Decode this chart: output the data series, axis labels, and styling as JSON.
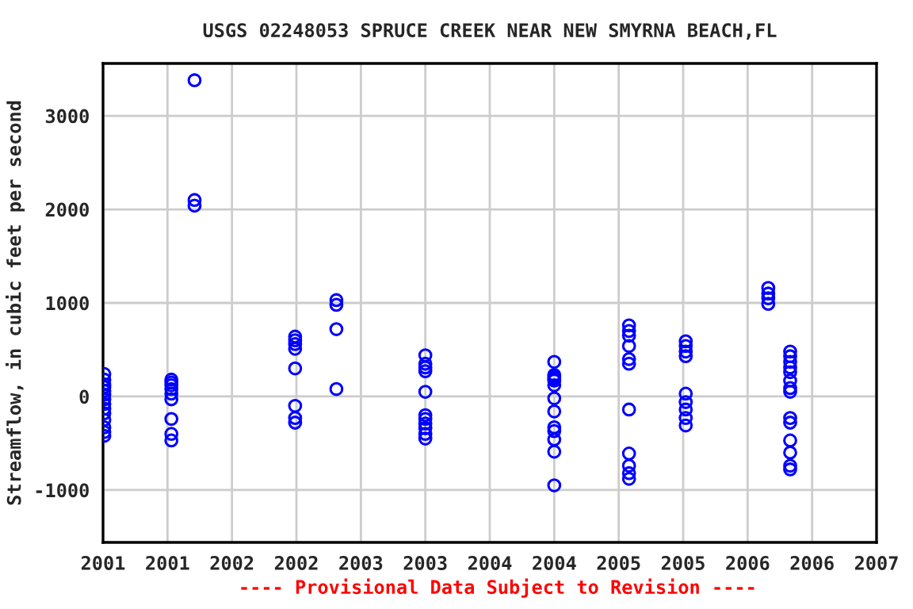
{
  "chart_data": {
    "type": "scatter",
    "title": "USGS 02248053 SPRUCE CREEK NEAR NEW SMYRNA BEACH,FL",
    "ylabel": "Streamflow, in cubic feet per second",
    "annotations": [
      "---- Provisional Data Subject to Revision ----"
    ],
    "marker": "circle",
    "grid": true,
    "xlim": [
      2001,
      2007
    ],
    "ylim": [
      -1560,
      3560
    ],
    "xticks": [
      {
        "value": 2001,
        "label": "2001"
      },
      {
        "value": 2001.5,
        "label": "2001"
      },
      {
        "value": 2002,
        "label": "2002"
      },
      {
        "value": 2002.5,
        "label": "2002"
      },
      {
        "value": 2003,
        "label": "2003"
      },
      {
        "value": 2003.5,
        "label": "2003"
      },
      {
        "value": 2004,
        "label": "2004"
      },
      {
        "value": 2004.5,
        "label": "2004"
      },
      {
        "value": 2005,
        "label": "2005"
      },
      {
        "value": 2005.5,
        "label": "2005"
      },
      {
        "value": 2006,
        "label": "2006"
      },
      {
        "value": 2006.5,
        "label": "2006"
      },
      {
        "value": 2007,
        "label": "2007"
      }
    ],
    "yticks": [
      -1000,
      0,
      1000,
      2000,
      3000
    ],
    "series": [
      {
        "color": "#0000ff",
        "x": [
          2001.01,
          2001.01,
          2001.01,
          2001.01,
          2001.01,
          2001.01,
          2001.01,
          2001.01,
          2001.01,
          2001.01,
          2001.01,
          2001.01,
          2001.01,
          2001.01,
          2001.53,
          2001.53,
          2001.53,
          2001.53,
          2001.53,
          2001.53,
          2001.53,
          2001.53,
          2001.53,
          2001.71,
          2001.71,
          2001.71,
          2002.49,
          2002.49,
          2002.49,
          2002.49,
          2002.49,
          2002.49,
          2002.49,
          2002.49,
          2002.81,
          2002.81,
          2002.81,
          2002.81,
          2003.5,
          2003.5,
          2003.5,
          2003.5,
          2003.5,
          2003.5,
          2003.5,
          2003.5,
          2003.5,
          2003.5,
          2003.5,
          2004.5,
          2004.5,
          2004.5,
          2004.5,
          2004.5,
          2004.5,
          2004.5,
          2004.5,
          2004.5,
          2004.5,
          2004.5,
          2004.5,
          2004.5,
          2005.08,
          2005.08,
          2005.08,
          2005.08,
          2005.08,
          2005.08,
          2005.08,
          2005.08,
          2005.08,
          2005.08,
          2005.08,
          2005.52,
          2005.52,
          2005.52,
          2005.52,
          2005.52,
          2005.52,
          2005.52,
          2005.52,
          2005.52,
          2006.16,
          2006.16,
          2006.16,
          2006.16,
          2006.33,
          2006.33,
          2006.33,
          2006.33,
          2006.33,
          2006.33,
          2006.33,
          2006.33,
          2006.33,
          2006.33,
          2006.33,
          2006.33,
          2006.33,
          2006.33
        ],
        "values": [
          240,
          180,
          130,
          100,
          60,
          20,
          -30,
          -80,
          -130,
          -180,
          -250,
          -330,
          -380,
          -420,
          180,
          150,
          120,
          80,
          30,
          -30,
          -240,
          -400,
          -470,
          3380,
          2100,
          2040,
          640,
          600,
          560,
          510,
          300,
          -100,
          -230,
          -280,
          1030,
          980,
          720,
          80,
          440,
          350,
          310,
          270,
          50,
          -200,
          -240,
          -290,
          -340,
          -400,
          -450,
          370,
          230,
          210,
          190,
          170,
          120,
          -20,
          -160,
          -330,
          -370,
          -460,
          -590,
          -950,
          760,
          700,
          650,
          540,
          400,
          350,
          -140,
          -610,
          -740,
          -820,
          -880,
          590,
          540,
          480,
          430,
          30,
          -60,
          -140,
          -230,
          -310,
          1160,
          1100,
          1050,
          990,
          480,
          430,
          370,
          310,
          260,
          170,
          90,
          50,
          -230,
          -280,
          -470,
          -600,
          -740,
          -780
        ]
      }
    ]
  }
}
